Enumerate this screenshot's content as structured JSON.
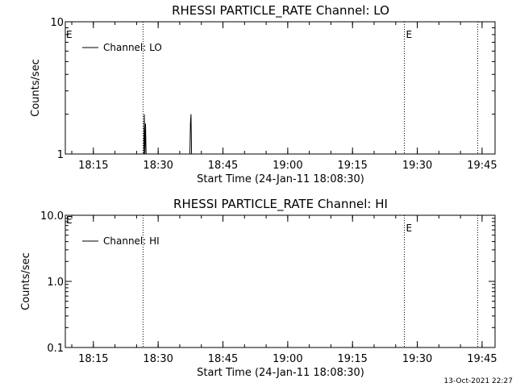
{
  "footer": {
    "timestamp": "13-Oct-2021 22:27"
  },
  "chart_data": [
    {
      "type": "line",
      "title": "RHESSI PARTICLE_RATE Channel: LO",
      "xlabel": "Start Time (24-Jan-11 18:08:30)",
      "ylabel": "Counts/sec",
      "yscale": "log",
      "ylim": [
        1,
        10
      ],
      "xlim": [
        "18:08:30",
        "19:48:00"
      ],
      "x_ticks": [
        "18:15",
        "18:30",
        "18:45",
        "19:00",
        "19:15",
        "19:30",
        "19:45"
      ],
      "y_ticks": [
        "1",
        "10"
      ],
      "legend": {
        "label": "Channel: LO",
        "position": "top-left"
      },
      "markers": [
        {
          "time": "18:26:30",
          "label": ""
        },
        {
          "time": "19:27:00",
          "label": "E"
        },
        {
          "time": "19:44:00",
          "label": ""
        }
      ],
      "corner_label": "E",
      "series": [
        {
          "name": "Channel: LO",
          "points": [
            [
              "18:26:40",
              1.0
            ],
            [
              "18:26:48",
              2.0
            ],
            [
              "18:26:56",
              1.0
            ],
            [
              "18:27:04",
              1.7
            ],
            [
              "18:27:12",
              1.0
            ],
            [
              "18:37:20",
              1.0
            ],
            [
              "18:37:28",
              1.7
            ],
            [
              "18:37:36",
              2.0
            ],
            [
              "18:37:44",
              1.0
            ]
          ]
        }
      ]
    },
    {
      "type": "line",
      "title": "RHESSI PARTICLE_RATE Channel: HI",
      "xlabel": "Start Time (24-Jan-11 18:08:30)",
      "ylabel": "Counts/sec",
      "yscale": "log",
      "ylim": [
        0.1,
        10
      ],
      "xlim": [
        "18:08:30",
        "19:48:00"
      ],
      "x_ticks": [
        "18:15",
        "18:30",
        "18:45",
        "19:00",
        "19:15",
        "19:30",
        "19:45"
      ],
      "y_ticks": [
        "0.1",
        "1.0",
        "10.0"
      ],
      "legend": {
        "label": "Channel: HI",
        "position": "top-left"
      },
      "markers": [
        {
          "time": "18:26:30",
          "label": ""
        },
        {
          "time": "19:27:00",
          "label": "E"
        },
        {
          "time": "19:44:00",
          "label": ""
        }
      ],
      "corner_label": "E",
      "series": [
        {
          "name": "Channel: HI",
          "points": []
        }
      ]
    }
  ]
}
